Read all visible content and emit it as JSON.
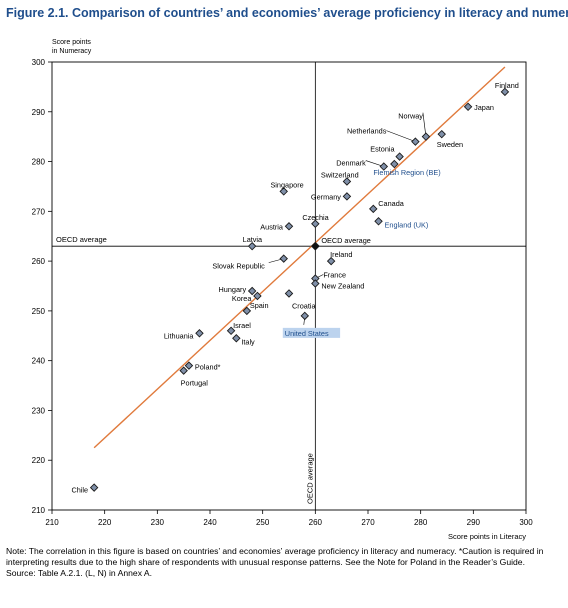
{
  "title": "Figure 2.1. Comparison of countries’ and economies’ average proficiency in literacy and numeracy",
  "notes": [
    "Note: The correlation in this figure is based on countries’ and economies’ average proficiency in literacy and numeracy. *Caution is required in interpreting results due to the high share of respondents with unusual response patterns. See the Note for Poland in the Reader’s Guide.",
    "Source: Table A.2.1. (L, N) in Annex A."
  ],
  "chart_data": {
    "type": "scatter",
    "xlabel": "Score points in Literacy",
    "ylabel": [
      "Score points",
      "in Numeracy"
    ],
    "xlim": [
      210,
      300
    ],
    "ylim": [
      210,
      300
    ],
    "xticks": [
      210,
      220,
      230,
      240,
      250,
      260,
      270,
      280,
      290,
      300
    ],
    "yticks": [
      210,
      220,
      230,
      240,
      250,
      260,
      270,
      280,
      290,
      300
    ],
    "grid": false,
    "colors": {
      "marker_fill": "#7f8fa8",
      "marker_stroke": "#1a1a1a",
      "trend_line": "#e07a3c",
      "highlight": "#bcd3ee"
    },
    "oecd_average": {
      "literacy": 260,
      "numeracy": 263,
      "x_label": "OECD average",
      "y_label": "OECD average",
      "point_label": "OECD average"
    },
    "trend_line": {
      "from": [
        218,
        222.5
      ],
      "to": [
        296,
        299
      ]
    },
    "points": [
      {
        "name": "Finland",
        "x": 296,
        "y": 294
      },
      {
        "name": "Japan",
        "x": 289,
        "y": 291
      },
      {
        "name": "Norway",
        "x": 281,
        "y": 285
      },
      {
        "name": "Sweden",
        "x": 284,
        "y": 285.5
      },
      {
        "name": "Netherlands",
        "x": 279,
        "y": 284
      },
      {
        "name": "Estonia",
        "x": 276,
        "y": 281
      },
      {
        "name": "Denmark",
        "x": 273,
        "y": 279
      },
      {
        "name": "Flemish Region (BE)",
        "x": 275,
        "y": 279.5
      },
      {
        "name": "Switzerland",
        "x": 266,
        "y": 276
      },
      {
        "name": "Singapore",
        "x": 254,
        "y": 274
      },
      {
        "name": "Germany",
        "x": 266,
        "y": 273
      },
      {
        "name": "Canada",
        "x": 271,
        "y": 270.5
      },
      {
        "name": "England (UK)",
        "x": 272,
        "y": 268
      },
      {
        "name": "Czechia",
        "x": 260,
        "y": 267.5
      },
      {
        "name": "Austria",
        "x": 255,
        "y": 267
      },
      {
        "name": "Latvia",
        "x": 248,
        "y": 263
      },
      {
        "name": "Ireland",
        "x": 263,
        "y": 260
      },
      {
        "name": "Slovak Republic",
        "x": 254,
        "y": 260.5
      },
      {
        "name": "France",
        "x": 260,
        "y": 256.5
      },
      {
        "name": "New Zealand",
        "x": 260,
        "y": 255.5
      },
      {
        "name": "Hungary",
        "x": 248,
        "y": 254
      },
      {
        "name": "Korea",
        "x": 249,
        "y": 253
      },
      {
        "name": "Croatia",
        "x": 255,
        "y": 253.5
      },
      {
        "name": "Spain",
        "x": 247,
        "y": 250
      },
      {
        "name": "United States",
        "x": 258,
        "y": 249,
        "highlight": true
      },
      {
        "name": "Israel",
        "x": 244,
        "y": 246
      },
      {
        "name": "Lithuania",
        "x": 238,
        "y": 245.5
      },
      {
        "name": "Italy",
        "x": 245,
        "y": 244.5
      },
      {
        "name": "Poland*",
        "x": 236,
        "y": 239
      },
      {
        "name": "Portugal",
        "x": 235,
        "y": 238
      },
      {
        "name": "Chile",
        "x": 218,
        "y": 214.5
      }
    ]
  }
}
